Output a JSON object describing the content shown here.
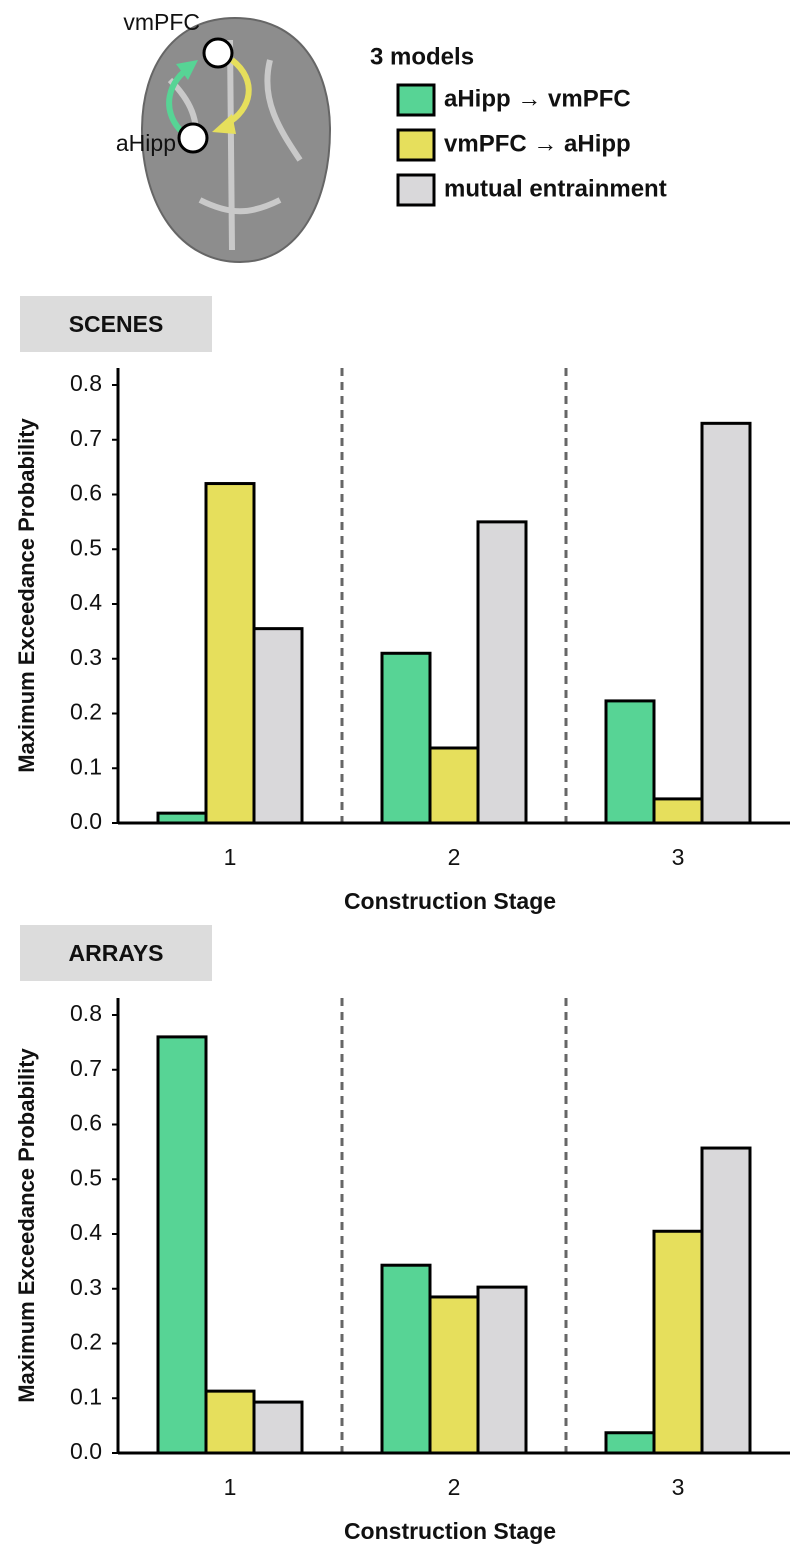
{
  "figure": {
    "legend_title": "3 models",
    "brain_labels": [
      "vmPFC",
      "aHipp"
    ]
  },
  "chart_data": [
    {
      "type": "bar",
      "title": "SCENES",
      "x_label": "Construction Stage",
      "y_label": "Maximum Exceedance Probability",
      "categories": [
        "1",
        "2",
        "3"
      ],
      "series": [
        {
          "name": "aHipp → vmPFC",
          "color": "#57d495",
          "values": [
            0.018,
            0.31,
            0.223
          ]
        },
        {
          "name": "vmPFC → aHipp",
          "color": "#e6df5c",
          "values": [
            0.62,
            0.137,
            0.044
          ]
        },
        {
          "name": "mutual entrainment",
          "color": "#d9d8da",
          "values": [
            0.355,
            0.55,
            0.73
          ]
        }
      ],
      "ylim": [
        0,
        0.8
      ],
      "yticks": [
        {
          "value": 0,
          "label": "0.0"
        },
        0.1,
        0.2,
        0.3,
        0.4,
        0.5,
        0.6,
        0.7,
        0.8
      ]
    },
    {
      "type": "bar",
      "title": "ARRAYS",
      "x_label": "Construction Stage",
      "y_label": "Maximum Exceedance Probability",
      "categories": [
        "1",
        "2",
        "3"
      ],
      "series": [
        {
          "color": "#57d495",
          "values": [
            0.76,
            0.343,
            0.037
          ]
        },
        {
          "color": "#e6df5c",
          "values": [
            0.113,
            0.285,
            0.405
          ]
        },
        {
          "color": "#d9d8da",
          "values": [
            0.093,
            0.303,
            0.557
          ]
        }
      ],
      "ylim": [
        0,
        0.8
      ],
      "yticks": [
        {
          "value": 0,
          "label": "0.0"
        },
        0.1,
        0.2,
        0.3,
        0.4,
        0.5,
        0.6,
        0.7,
        0.8
      ]
    }
  ]
}
